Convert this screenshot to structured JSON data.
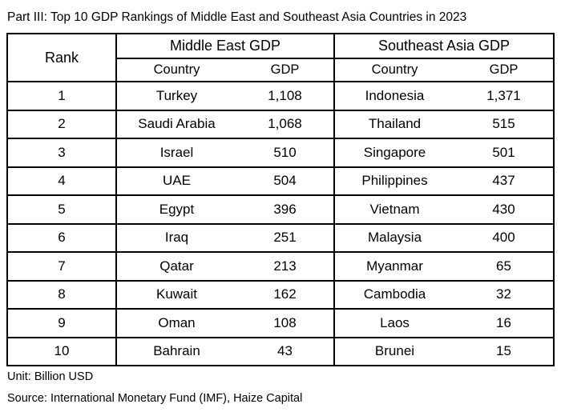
{
  "page": {
    "title": "Part III: Top 10 GDP Rankings of Middle East and Southeast Asia Countries in 2023",
    "unit_note": "Unit: Billion USD",
    "source_note": "Source: International Monetary Fund (IMF), Haize Capital"
  },
  "table": {
    "rank_header": "Rank",
    "sections": [
      {
        "label": "Middle East GDP",
        "country_header": "Country",
        "gdp_header": "GDP"
      },
      {
        "label": "Southeast Asia GDP",
        "country_header": "Country",
        "gdp_header": "GDP"
      }
    ],
    "rows": [
      {
        "rank": "1",
        "me_country": "Turkey",
        "me_gdp": "1,108",
        "sea_country": "Indonesia",
        "sea_gdp": "1,371"
      },
      {
        "rank": "2",
        "me_country": "Saudi Arabia",
        "me_gdp": "1,068",
        "sea_country": "Thailand",
        "sea_gdp": "515"
      },
      {
        "rank": "3",
        "me_country": "Israel",
        "me_gdp": "510",
        "sea_country": "Singapore",
        "sea_gdp": "501"
      },
      {
        "rank": "4",
        "me_country": "UAE",
        "me_gdp": "504",
        "sea_country": "Philippines",
        "sea_gdp": "437"
      },
      {
        "rank": "5",
        "me_country": "Egypt",
        "me_gdp": "396",
        "sea_country": "Vietnam",
        "sea_gdp": "430"
      },
      {
        "rank": "6",
        "me_country": "Iraq",
        "me_gdp": "251",
        "sea_country": "Malaysia",
        "sea_gdp": "400"
      },
      {
        "rank": "7",
        "me_country": "Qatar",
        "me_gdp": "213",
        "sea_country": "Myanmar",
        "sea_gdp": "65"
      },
      {
        "rank": "8",
        "me_country": "Kuwait",
        "me_gdp": "162",
        "sea_country": "Cambodia",
        "sea_gdp": "32"
      },
      {
        "rank": "9",
        "me_country": "Oman",
        "me_gdp": "108",
        "sea_country": "Laos",
        "sea_gdp": "16"
      },
      {
        "rank": "10",
        "me_country": "Bahrain",
        "me_gdp": "43",
        "sea_country": "Brunei",
        "sea_gdp": "15"
      }
    ]
  },
  "chart_data": {
    "type": "table",
    "title": "Part III: Top 10 GDP Rankings of Middle East and Southeast Asia Countries in 2023",
    "unit": "Billion USD",
    "source": "International Monetary Fund (IMF), Haize Capital",
    "columns": [
      "Rank",
      "Middle East Country",
      "Middle East GDP",
      "Southeast Asia Country",
      "Southeast Asia GDP"
    ],
    "rows": [
      [
        1,
        "Turkey",
        1108,
        "Indonesia",
        1371
      ],
      [
        2,
        "Saudi Arabia",
        1068,
        "Thailand",
        515
      ],
      [
        3,
        "Israel",
        510,
        "Singapore",
        501
      ],
      [
        4,
        "UAE",
        504,
        "Philippines",
        437
      ],
      [
        5,
        "Egypt",
        396,
        "Vietnam",
        430
      ],
      [
        6,
        "Iraq",
        251,
        "Malaysia",
        400
      ],
      [
        7,
        "Qatar",
        213,
        "Myanmar",
        65
      ],
      [
        8,
        "Kuwait",
        162,
        "Cambodia",
        32
      ],
      [
        9,
        "Oman",
        108,
        "Laos",
        16
      ],
      [
        10,
        "Bahrain",
        43,
        "Brunei",
        15
      ]
    ]
  }
}
